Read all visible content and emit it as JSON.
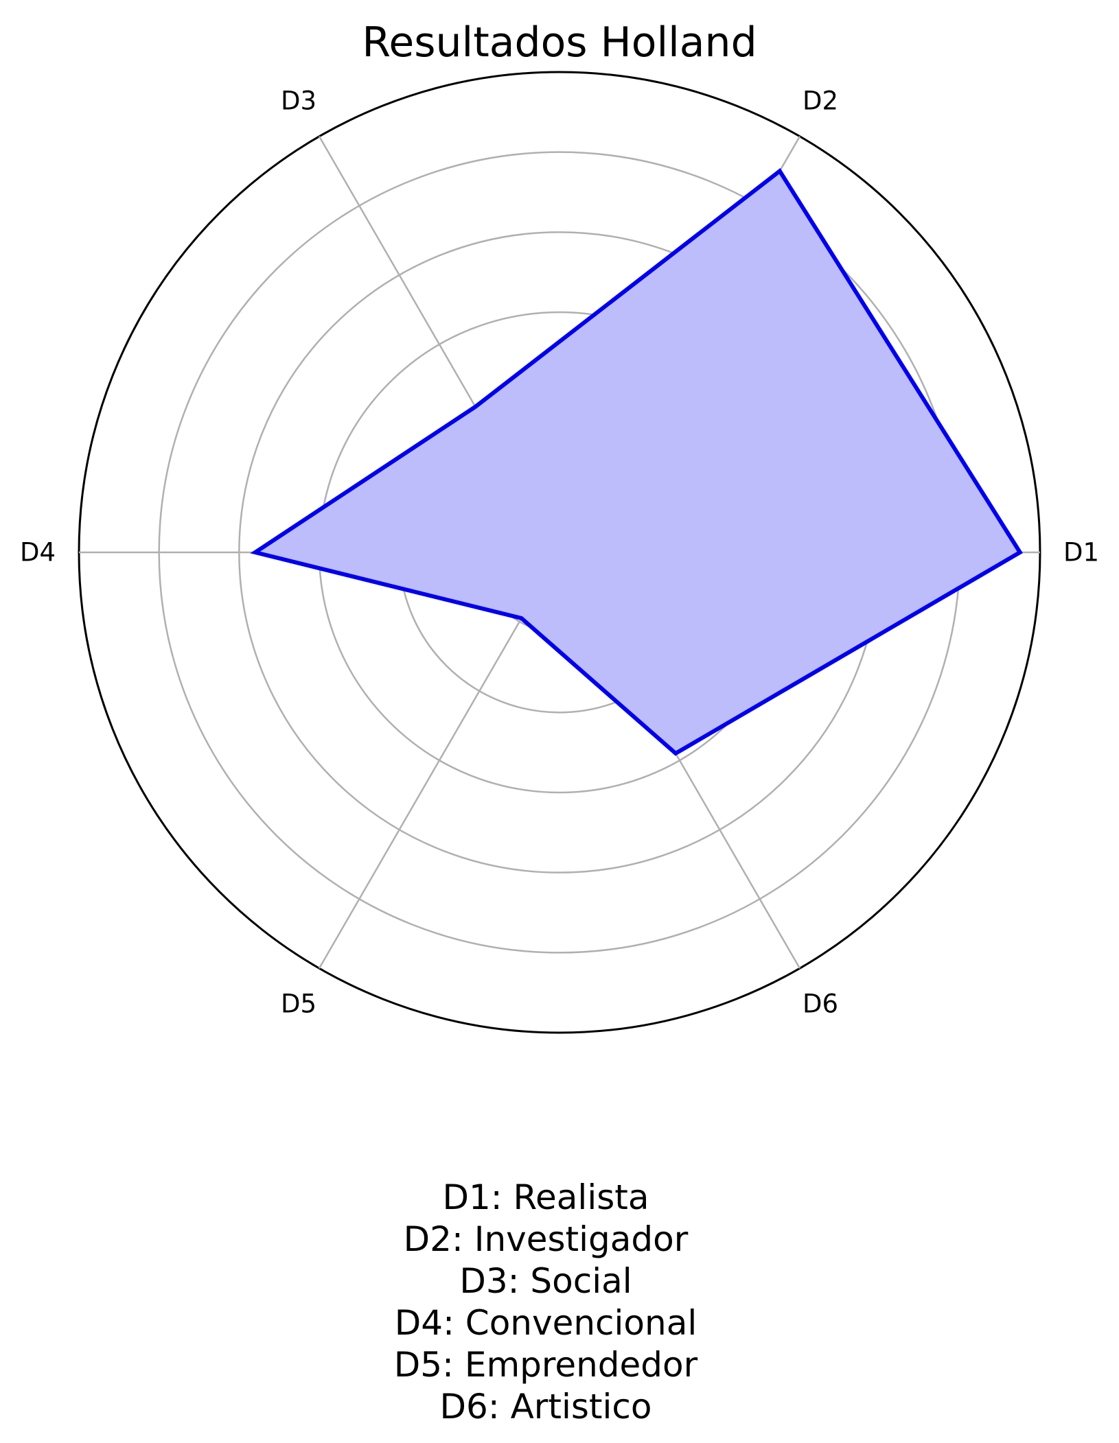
{
  "chart_data": {
    "type": "radar",
    "title": "Resultados Holland",
    "categories": [
      "D1",
      "D2",
      "D3",
      "D4",
      "D5",
      "D6"
    ],
    "series": [
      {
        "values": [
          5.75,
          5.5,
          2.1,
          3.8,
          0.95,
          2.9
        ]
      }
    ],
    "rlim": [
      0,
      6
    ],
    "r_gridlines": [
      1,
      2,
      3,
      4,
      5,
      6
    ],
    "r_tick_labels_visible": false,
    "grid": true,
    "colors": {
      "line": "#0000ee",
      "fill": "#bdbdfc",
      "grid": "#b0b0b0",
      "frame": "#000000"
    },
    "legend_lines": [
      "D1: Realista",
      "D2: Investigador",
      "D3: Social",
      "D4: Convencional",
      "D5: Emprendedor",
      "D6: Artistico"
    ]
  }
}
